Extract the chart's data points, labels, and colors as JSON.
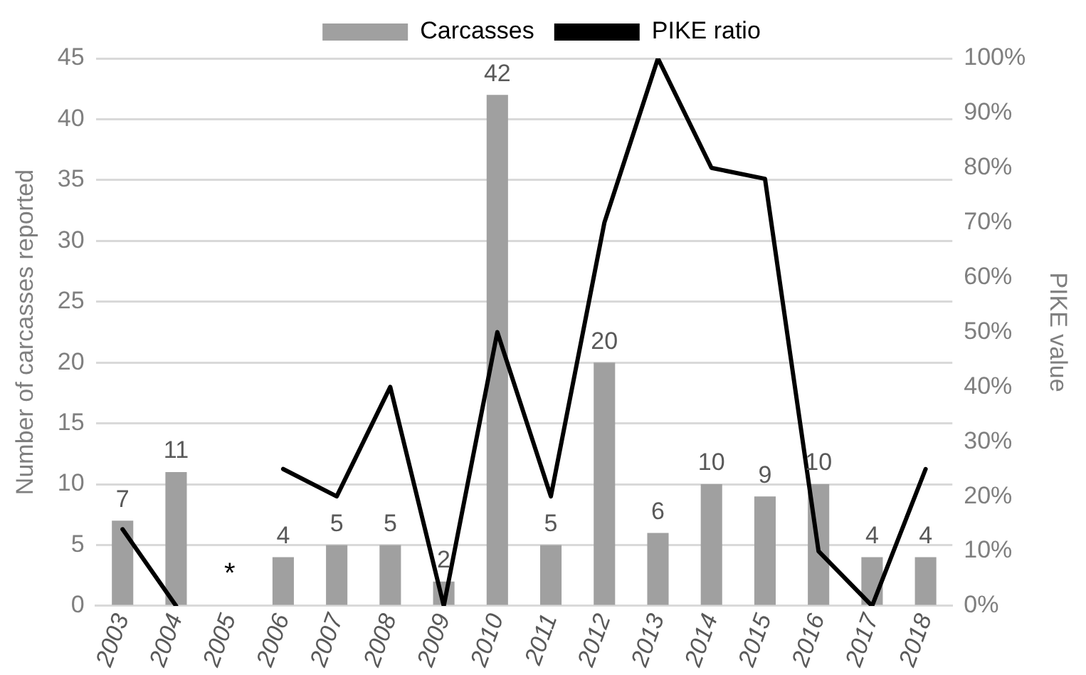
{
  "chart_data": {
    "type": "bar",
    "categories": [
      "2003",
      "2004",
      "2005",
      "2006",
      "2007",
      "2008",
      "2009",
      "2010",
      "2011",
      "2012",
      "2013",
      "2014",
      "2015",
      "2016",
      "2017",
      "2018"
    ],
    "series": [
      {
        "name": "Carcasses",
        "color": "#a0a0a0",
        "values": [
          7,
          11,
          null,
          4,
          5,
          5,
          2,
          42,
          5,
          20,
          6,
          10,
          9,
          10,
          4,
          4
        ],
        "value_labels": [
          "7",
          "11",
          null,
          "4",
          "5",
          "5",
          "2",
          "42",
          "5",
          "20",
          "6",
          "10",
          "9",
          "10",
          "4",
          "4"
        ]
      },
      {
        "name": "PIKE ratio",
        "type": "line",
        "axis": "y2",
        "color": "#000000",
        "values": [
          14,
          0,
          null,
          25,
          20,
          40,
          0,
          50,
          20,
          70,
          100,
          80,
          78,
          10,
          0,
          25
        ]
      }
    ],
    "ylabel": "Number of carcasses reported",
    "y2label": "PIKE value",
    "ylim": [
      0,
      45
    ],
    "yticks": [
      0,
      5,
      10,
      15,
      20,
      25,
      30,
      35,
      40,
      45
    ],
    "y2lim": [
      0,
      100
    ],
    "y2ticks": [
      {
        "value": 0,
        "label": "0%"
      },
      {
        "value": 10,
        "label": "10%"
      },
      {
        "value": 20,
        "label": "20%"
      },
      {
        "value": 30,
        "label": "30%"
      },
      {
        "value": 40,
        "label": "40%"
      },
      {
        "value": 50,
        "label": "50%"
      },
      {
        "value": 60,
        "label": "60%"
      },
      {
        "value": 70,
        "label": "70%"
      },
      {
        "value": 80,
        "label": "80%"
      },
      {
        "value": 90,
        "label": "90%"
      },
      {
        "value": 100,
        "label": "100%"
      }
    ],
    "annotations": [
      "*"
    ],
    "grid": "y",
    "legend": "top",
    "marker": "none",
    "line_style": "solid"
  }
}
